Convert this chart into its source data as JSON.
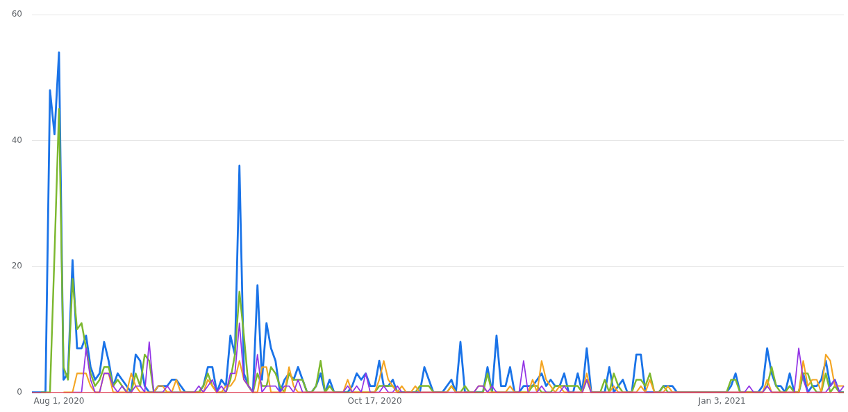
{
  "chart_data": {
    "type": "line",
    "categories": [
      null,
      null,
      null,
      null,
      null,
      null,
      "Aug 1, 2020",
      null,
      null,
      null,
      null,
      null,
      null,
      null,
      null,
      null,
      null,
      null,
      null,
      null,
      null,
      null,
      null,
      null,
      null,
      null,
      null,
      null,
      null,
      null,
      null,
      null,
      null,
      null,
      null,
      null,
      null,
      null,
      null,
      null,
      null,
      null,
      null,
      null,
      null,
      null,
      null,
      null,
      null,
      null,
      null,
      null,
      null,
      null,
      null,
      null,
      null,
      null,
      null,
      null,
      null,
      null,
      null,
      null,
      null,
      null,
      null,
      null,
      null,
      null,
      null,
      null,
      null,
      null,
      null,
      null,
      "Oct 17, 2020",
      null,
      null,
      null,
      null,
      null,
      null,
      null,
      null,
      null,
      null,
      null,
      null,
      null,
      null,
      null,
      null,
      null,
      null,
      null,
      null,
      null,
      null,
      null,
      null,
      null,
      null,
      null,
      null,
      null,
      null,
      null,
      null,
      null,
      null,
      null,
      null,
      null,
      null,
      null,
      null,
      null,
      null,
      null,
      null,
      null,
      null,
      null,
      null,
      null,
      null,
      null,
      null,
      null,
      null,
      null,
      null,
      null,
      null,
      null,
      null,
      null,
      null,
      null,
      null,
      null,
      null,
      null,
      null,
      null,
      null,
      null,
      null,
      null,
      null,
      null,
      null,
      "Jan 3, 2021",
      null,
      null,
      null,
      null,
      null,
      null,
      null,
      null,
      null,
      null,
      null,
      null,
      null,
      null,
      null,
      null,
      null,
      null,
      null,
      null,
      null,
      null,
      null,
      null,
      null,
      null,
      null
    ],
    "series": [
      {
        "color": "#1a73e8",
        "values": [
          0,
          0,
          0,
          0,
          48,
          41,
          54,
          2,
          3,
          21,
          7,
          7,
          9,
          4,
          2,
          3,
          8,
          5,
          1,
          3,
          2,
          1,
          0,
          6,
          5,
          1,
          0,
          0,
          1,
          1,
          1,
          2,
          2,
          1,
          0,
          0,
          0,
          0,
          1,
          4,
          4,
          0,
          2,
          1,
          9,
          6,
          36,
          3,
          1,
          0,
          17,
          2,
          11,
          7,
          5,
          0,
          2,
          3,
          2,
          4,
          2,
          0,
          0,
          1,
          3,
          0,
          2,
          0,
          0,
          0,
          0,
          1,
          3,
          2,
          3,
          1,
          1,
          5,
          1,
          1,
          2,
          0,
          0,
          0,
          0,
          0,
          0,
          4,
          2,
          0,
          0,
          0,
          1,
          2,
          0,
          8,
          0,
          0,
          0,
          0,
          0,
          4,
          0,
          9,
          1,
          1,
          4,
          0,
          0,
          1,
          1,
          1,
          2,
          3,
          1,
          2,
          1,
          1,
          3,
          0,
          0,
          3,
          0,
          7,
          0,
          0,
          0,
          0,
          4,
          0,
          1,
          2,
          0,
          0,
          6,
          6,
          0,
          0,
          0,
          0,
          1,
          1,
          1,
          0,
          0,
          0,
          0,
          0,
          0,
          0,
          0,
          0,
          0,
          0,
          0,
          1,
          3,
          0,
          0,
          0,
          0,
          0,
          1,
          7,
          3,
          1,
          1,
          0,
          3,
          0,
          0,
          3,
          0,
          1,
          1,
          2,
          5,
          1,
          2,
          0,
          0
        ]
      },
      {
        "color": "#7cb82f",
        "values": [
          null,
          null,
          0,
          0,
          0,
          22,
          45,
          4,
          2,
          18,
          10,
          11,
          7,
          3,
          1,
          2,
          4,
          4,
          1,
          2,
          1,
          0,
          0,
          3,
          1,
          6,
          5,
          0,
          0,
          0,
          0,
          0,
          0,
          0,
          0,
          0,
          0,
          0,
          1,
          3,
          1,
          0,
          0,
          0,
          2,
          6,
          16,
          9,
          1,
          0,
          3,
          1,
          1,
          4,
          3,
          1,
          0,
          3,
          2,
          2,
          2,
          0,
          0,
          1,
          5,
          0,
          1,
          0,
          0,
          0,
          0,
          0,
          0,
          0,
          0,
          0,
          0,
          1,
          1,
          1,
          1,
          0,
          0,
          0,
          0,
          0,
          1,
          1,
          1,
          0,
          0,
          0,
          0,
          1,
          0,
          0,
          1,
          0,
          0,
          0,
          0,
          3,
          0,
          0,
          0,
          0,
          0,
          0,
          0,
          0,
          0,
          1,
          1,
          0,
          0,
          0,
          1,
          1,
          1,
          1,
          1,
          1,
          0,
          2,
          0,
          0,
          0,
          2,
          0,
          3,
          1,
          0,
          0,
          0,
          2,
          2,
          1,
          3,
          0,
          0,
          1,
          0,
          0,
          0,
          0,
          0,
          0,
          0,
          0,
          0,
          0,
          0,
          0,
          0,
          0,
          2,
          2,
          0,
          0,
          0,
          0,
          0,
          0,
          1,
          4,
          1,
          0,
          0,
          1,
          0,
          0,
          3,
          3,
          1,
          0,
          0,
          3,
          0,
          1,
          0,
          0
        ]
      },
      {
        "color": "#f4a522",
        "values": [
          null,
          null,
          null,
          null,
          null,
          null,
          null,
          0,
          0,
          0,
          3,
          3,
          3,
          1,
          0,
          0,
          3,
          3,
          0,
          0,
          0,
          0,
          3,
          1,
          0,
          0,
          0,
          0,
          1,
          1,
          0,
          0,
          2,
          0,
          0,
          0,
          0,
          0,
          0,
          2,
          1,
          0,
          0,
          1,
          1,
          2,
          5,
          2,
          1,
          0,
          0,
          4,
          4,
          0,
          0,
          0,
          0,
          4,
          1,
          0,
          0,
          0,
          0,
          0,
          0,
          0,
          0,
          0,
          0,
          0,
          2,
          0,
          0,
          0,
          0,
          0,
          0,
          2,
          5,
          2,
          1,
          0,
          1,
          0,
          0,
          1,
          0,
          0,
          0,
          0,
          0,
          0,
          0,
          1,
          0,
          0,
          0,
          0,
          0,
          1,
          1,
          0,
          0,
          0,
          0,
          0,
          1,
          0,
          0,
          0,
          0,
          2,
          0,
          5,
          2,
          1,
          0,
          1,
          0,
          0,
          0,
          0,
          0,
          3,
          0,
          0,
          0,
          0,
          0,
          1,
          0,
          0,
          0,
          0,
          0,
          1,
          0,
          2,
          0,
          0,
          0,
          1,
          0,
          0,
          0,
          0,
          0,
          0,
          0,
          0,
          0,
          0,
          0,
          0,
          0,
          0,
          0,
          0,
          0,
          0,
          0,
          0,
          0,
          2,
          0,
          0,
          0,
          0,
          0,
          0,
          0,
          5,
          1,
          2,
          2,
          0,
          6,
          5,
          1,
          1,
          1
        ]
      },
      {
        "color": "#9334e6",
        "values": [
          null,
          null,
          null,
          null,
          null,
          null,
          null,
          null,
          null,
          0,
          0,
          0,
          7,
          2,
          0,
          0,
          3,
          3,
          1,
          0,
          1,
          0,
          0,
          1,
          1,
          0,
          8,
          0,
          0,
          0,
          1,
          0,
          0,
          0,
          0,
          0,
          0,
          1,
          0,
          1,
          2,
          0,
          1,
          0,
          3,
          3,
          11,
          2,
          1,
          0,
          6,
          0,
          1,
          1,
          1,
          0,
          1,
          1,
          0,
          2,
          0,
          0,
          0,
          0,
          0,
          0,
          0,
          0,
          0,
          0,
          1,
          0,
          1,
          0,
          3,
          0,
          0,
          0,
          1,
          0,
          0,
          1,
          0,
          0,
          0,
          0,
          0,
          0,
          0,
          0,
          0,
          0,
          0,
          0,
          0,
          0,
          0,
          0,
          0,
          1,
          1,
          0,
          1,
          0,
          0,
          0,
          0,
          0,
          0,
          5,
          0,
          0,
          0,
          1,
          0,
          0,
          0,
          0,
          1,
          0,
          0,
          0,
          0,
          2,
          0,
          0,
          0,
          0,
          0,
          0,
          0,
          0,
          0,
          0,
          0,
          0,
          0,
          0,
          0,
          0,
          0,
          0,
          0,
          0,
          0,
          0,
          0,
          0,
          0,
          0,
          0,
          0,
          0,
          0,
          0,
          0,
          0,
          0,
          0,
          1,
          0,
          0,
          0,
          1,
          0,
          0,
          0,
          0,
          0,
          0,
          7,
          2,
          0,
          0,
          0,
          0,
          0,
          1,
          2,
          0,
          1
        ]
      },
      {
        "color": "#e0455a",
        "values": [
          0,
          0,
          0,
          0,
          0,
          0,
          0,
          0,
          0,
          0,
          0,
          0,
          0,
          0,
          0,
          0,
          0,
          0,
          0,
          0,
          0,
          0,
          0,
          0,
          0,
          0,
          0,
          0,
          0,
          0,
          0,
          0,
          0,
          0,
          0,
          0,
          0,
          0,
          0,
          0,
          0,
          0,
          0,
          0,
          0,
          0,
          0,
          0,
          0,
          0,
          0,
          0,
          0,
          0,
          0,
          0,
          0,
          0,
          0,
          0,
          0,
          0,
          0,
          0,
          0,
          0,
          0,
          0,
          0,
          0,
          0,
          0,
          0,
          0,
          0,
          0,
          0,
          0,
          0,
          0,
          0,
          0,
          0,
          0,
          0,
          0,
          0,
          0,
          0,
          0,
          0,
          0,
          0,
          0,
          0,
          0,
          0,
          0,
          0,
          0,
          0,
          0,
          0,
          0,
          0,
          0,
          0,
          0,
          0,
          0,
          0,
          0,
          0,
          0,
          0,
          0,
          0,
          0,
          0,
          0,
          0,
          0,
          0,
          0,
          0,
          0,
          0,
          0,
          0,
          0,
          0,
          0,
          0,
          0,
          0,
          0,
          0,
          0,
          0,
          0,
          0,
          0,
          0,
          0,
          0,
          0,
          0,
          0,
          0,
          0,
          0,
          0,
          0,
          0,
          0,
          0,
          0,
          0,
          0,
          0,
          0,
          0,
          0,
          0,
          0,
          0,
          0,
          0,
          0,
          0,
          0,
          0,
          0,
          0,
          0,
          0,
          0,
          0,
          0,
          0,
          0
        ]
      }
    ],
    "ylim": [
      0,
      60
    ],
    "yticks": [
      0,
      20,
      40,
      60
    ],
    "grid": "y",
    "marker": "none",
    "line_style": "solid"
  }
}
